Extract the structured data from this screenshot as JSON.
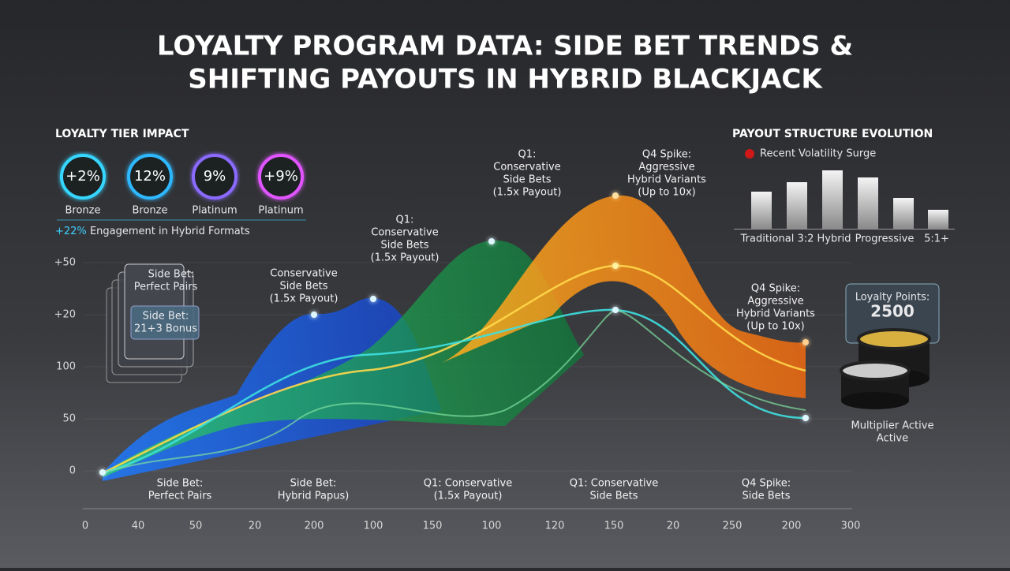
{
  "title_lines": [
    "LOYALTY PROGRAM DATA: SIDE BET TRENDS &",
    "SHIFTING PAYOUTS IN HYBRID BLACKJACK"
  ],
  "tier_impact": {
    "heading": "LOYALTY TIER IMPACT",
    "rings": [
      {
        "value": "+2%",
        "label": "Bronze"
      },
      {
        "value": "12%",
        "label": "Bronze"
      },
      {
        "value": "9%",
        "label": "Platinum"
      },
      {
        "value": "+9%",
        "label": "Platinum"
      }
    ],
    "note_highlight": "+22%",
    "note": "Engagement in Hybrid Formats"
  },
  "payout": {
    "heading": "PAYOUT STRUCTURE EVOLUTION",
    "alert": "Recent Volatility Surge",
    "bar_labels": [
      "Traditional 3:2",
      "Hybrid",
      "Progressive",
      "5:1+"
    ]
  },
  "y_axis": [
    "+50",
    "+20",
    "100",
    "50",
    "0"
  ],
  "x_axis": [
    "0",
    "40",
    "50",
    "20",
    "200",
    "100",
    "150",
    "100",
    "120",
    "150",
    "20",
    "250",
    "200",
    "300"
  ],
  "annotations": [
    [
      "Conservative",
      "Side Bets",
      "(1.5x Payout)"
    ],
    [
      "Q1:",
      "Conservative",
      "Side Bets",
      "(1.5x Payout)"
    ],
    [
      "Q1:",
      "Conservative",
      "Side Bets",
      "(1.5x Payout)"
    ],
    [
      "Q4 Spike:",
      "Aggressive",
      "Hybrid Variants",
      "(Up to 10x)"
    ],
    [
      "Q4 Spike:",
      "Aggressive",
      "Hybrid Variants",
      "(Up to 10x)"
    ]
  ],
  "bottom_labels": [
    [
      "Side Bet:",
      "Perfect Pairs"
    ],
    [
      "Side Bet:",
      "Hybrid Papus)"
    ],
    [
      "Q1: Conservative",
      "(1.5x Payout)"
    ],
    [
      "Q1: Conservative",
      "Side Bets"
    ],
    [
      "Q4 Spike:",
      "Side Bets"
    ]
  ],
  "cards": [
    {
      "title": "Side Bet:",
      "subtitle": "Perfect Pairs"
    },
    {
      "title": "Side Bet:",
      "subtitle": "21+3 Bonus"
    }
  ],
  "loyalty": {
    "label": "Loyalty Points:",
    "points": "2500",
    "multiplier": "Multiplier Active",
    "status": "Active"
  }
}
